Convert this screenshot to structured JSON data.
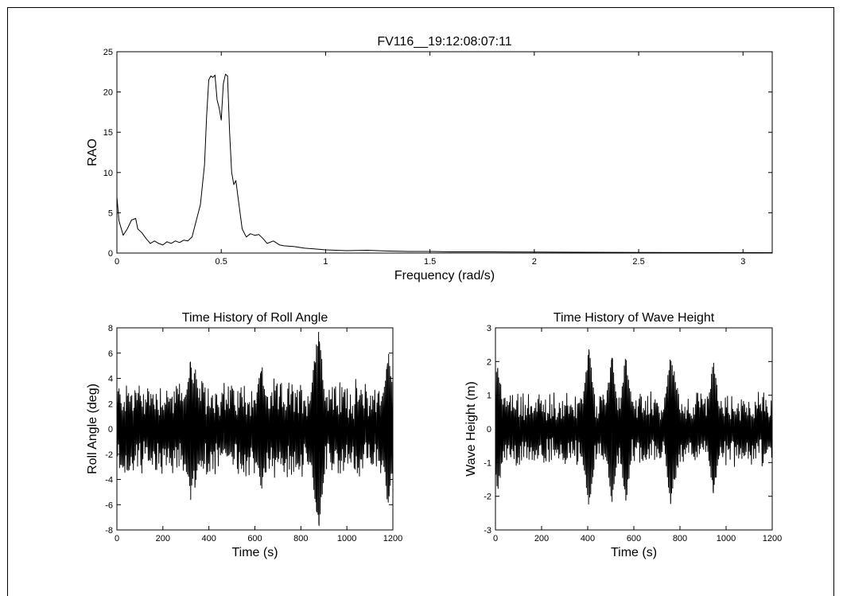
{
  "chart_data": [
    {
      "type": "line",
      "title": "FV116__19:12:08:07:11",
      "xlabel": "Frequency (rad/s)",
      "ylabel": "RAO",
      "xlim": [
        0,
        3.14
      ],
      "ylim": [
        0,
        25
      ],
      "xticks": [
        0,
        0.5,
        1,
        1.5,
        2,
        2.5,
        3
      ],
      "xtick_labels": [
        "0",
        "0.5",
        "1",
        "1.5",
        "2",
        "2.5",
        "3"
      ],
      "yticks": [
        0,
        5,
        10,
        15,
        20,
        25
      ],
      "ytick_labels": [
        "0",
        "5",
        "10",
        "15",
        "20",
        "25"
      ],
      "grid": false,
      "series": [
        {
          "x": [
            0,
            0.01,
            0.03,
            0.05,
            0.07,
            0.09,
            0.1,
            0.12,
            0.14,
            0.16,
            0.18,
            0.2,
            0.22,
            0.24,
            0.26,
            0.28,
            0.3,
            0.32,
            0.34,
            0.36,
            0.38,
            0.4,
            0.42,
            0.43,
            0.44,
            0.45,
            0.46,
            0.47,
            0.48,
            0.49,
            0.5,
            0.51,
            0.52,
            0.53,
            0.54,
            0.55,
            0.56,
            0.57,
            0.58,
            0.6,
            0.62,
            0.64,
            0.66,
            0.68,
            0.7,
            0.72,
            0.75,
            0.78,
            0.8,
            0.85,
            0.9,
            0.95,
            1.0,
            1.1,
            1.2,
            1.3,
            1.4,
            1.5,
            1.6,
            1.8,
            2.0,
            2.2,
            2.5,
            2.8,
            3.14
          ],
          "y": [
            7.0,
            4.0,
            2.2,
            3.0,
            4.1,
            4.3,
            3.0,
            2.5,
            1.8,
            1.2,
            1.5,
            1.2,
            1.0,
            1.4,
            1.2,
            1.5,
            1.3,
            1.6,
            1.5,
            2.0,
            4.0,
            6.0,
            11.0,
            17.0,
            21.5,
            22.0,
            21.8,
            22.1,
            19.0,
            18.0,
            16.5,
            21.0,
            22.2,
            22.0,
            15.0,
            10.0,
            8.5,
            9.0,
            7.0,
            3.0,
            2.0,
            2.4,
            2.2,
            2.3,
            1.8,
            1.2,
            1.5,
            1.0,
            0.9,
            0.8,
            0.6,
            0.5,
            0.4,
            0.3,
            0.35,
            0.25,
            0.2,
            0.2,
            0.15,
            0.15,
            0.12,
            0.1,
            0.08,
            0.06,
            0.05
          ]
        }
      ]
    },
    {
      "type": "line",
      "title": "Time History of Roll Angle",
      "xlabel": "Time (s)",
      "ylabel": "Roll Angle (deg)",
      "xlim": [
        0,
        1200
      ],
      "ylim": [
        -8,
        8
      ],
      "xticks": [
        0,
        200,
        400,
        600,
        800,
        1000,
        1200
      ],
      "xtick_labels": [
        "0",
        "200",
        "400",
        "600",
        "800",
        "1000",
        "1200"
      ],
      "yticks": [
        -8,
        -6,
        -4,
        -2,
        0,
        2,
        4,
        6,
        8
      ],
      "ytick_labels": [
        "-8",
        "-6",
        "-4",
        "-2",
        "0",
        "2",
        "4",
        "6",
        "8"
      ],
      "grid": false,
      "peaks": [
        {
          "x": 880,
          "y": 6.9
        },
        {
          "x": 878,
          "y": -7.5
        },
        {
          "x": 868,
          "y": -6.5
        },
        {
          "x": 860,
          "y": 4.9
        },
        {
          "x": 320,
          "y": 5.3
        },
        {
          "x": 340,
          "y": -4.4
        },
        {
          "x": 1180,
          "y": -5.8
        },
        {
          "x": 1175,
          "y": 4.8
        },
        {
          "x": 630,
          "y": -4.7
        },
        {
          "x": 625,
          "y": 4.4
        }
      ],
      "series": [
        {
          "envelope_amplitude": 3.5
        }
      ]
    },
    {
      "type": "line",
      "title": "Time History of Wave Height",
      "xlabel": "Time (s)",
      "ylabel": "Wave Height (m)",
      "xlim": [
        0,
        1200
      ],
      "ylim": [
        -3,
        3
      ],
      "xticks": [
        0,
        200,
        400,
        600,
        800,
        1000,
        1200
      ],
      "xtick_labels": [
        "0",
        "200",
        "400",
        "600",
        "800",
        "1000",
        "1200"
      ],
      "yticks": [
        -3,
        -2,
        -1,
        0,
        1,
        2,
        3
      ],
      "ytick_labels": [
        "-3",
        "-2",
        "-1",
        "0",
        "1",
        "2",
        "3"
      ],
      "grid": false,
      "peaks": [
        {
          "x": 405,
          "y": 2.35
        },
        {
          "x": 505,
          "y": 2.1
        },
        {
          "x": 760,
          "y": -2.15
        },
        {
          "x": 775,
          "y": 1.7
        },
        {
          "x": 565,
          "y": -2.1
        },
        {
          "x": 945,
          "y": -1.9
        },
        {
          "x": 10,
          "y": 1.8
        }
      ],
      "series": [
        {
          "envelope_amplitude": 1.0
        }
      ]
    }
  ]
}
